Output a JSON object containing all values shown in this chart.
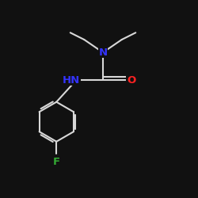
{
  "background_color": "#111111",
  "bond_color": "#d8d8d8",
  "bond_width": 1.5,
  "fig_width": 2.5,
  "fig_height": 2.5,
  "dpi": 100,
  "label_N": {
    "text": "N",
    "color": "#3333ff",
    "fontsize": 9.5
  },
  "label_NH": {
    "text": "HN",
    "color": "#3333ff",
    "fontsize": 9.5
  },
  "label_O": {
    "text": "O",
    "color": "#ff2222",
    "fontsize": 9.5
  },
  "label_F": {
    "text": "F",
    "color": "#33aa33",
    "fontsize": 9.5
  }
}
